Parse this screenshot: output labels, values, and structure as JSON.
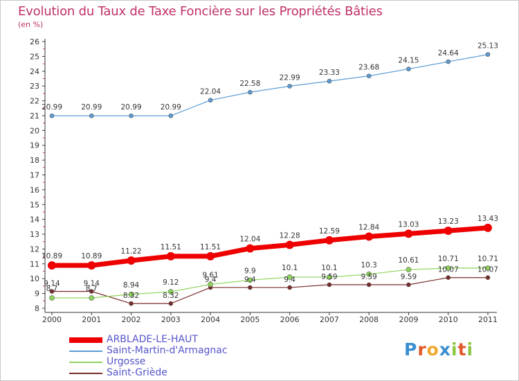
{
  "title": "Evolution du Taux de Taxe Foncière sur les Propriétés Bâties",
  "subtitle": "(en %)",
  "logo": {
    "letters": [
      "P",
      "r",
      "o",
      "x",
      "i",
      "t",
      "i"
    ],
    "colors": [
      "#3a8ed0",
      "#e0592a",
      "#f0a830",
      "#3a8ed0",
      "#8cc63f",
      "#e0592a",
      "#8cc63f"
    ]
  },
  "chart_data": {
    "type": "line",
    "x": [
      "2000",
      "2001",
      "2002",
      "2003",
      "2004",
      "2005",
      "2006",
      "2007",
      "2008",
      "2009",
      "2010",
      "2011"
    ],
    "ylim": [
      8,
      26
    ],
    "yticks": [
      "8",
      "9",
      "10",
      "11",
      "12",
      "13",
      "14",
      "15",
      "16",
      "17",
      "18",
      "19",
      "20",
      "21",
      "22",
      "23",
      "24",
      "25",
      "26"
    ],
    "grid": false,
    "legend_position": "bottom-left",
    "series": [
      {
        "name": "ARBLADE-LE-HAUT",
        "color": "#ee0000",
        "values": [
          10.89,
          10.89,
          11.22,
          11.51,
          11.51,
          12.04,
          12.28,
          12.59,
          12.84,
          13.03,
          13.23,
          13.43
        ],
        "labels": [
          "10.89",
          "10.89",
          "11.22",
          "11.51",
          "11.51",
          "12.04",
          "12.28",
          "12.59",
          "12.84",
          "13.03",
          "13.23",
          "13.43"
        ]
      },
      {
        "name": "Saint-Martin-d'Armagnac",
        "color": "#5b9bd5",
        "values": [
          20.99,
          20.99,
          20.99,
          20.99,
          22.04,
          22.58,
          22.99,
          23.33,
          23.68,
          24.15,
          24.64,
          25.13
        ],
        "labels": [
          "20.99",
          "20.99",
          "20.99",
          "20.99",
          "22.04",
          "22.58",
          "22.99",
          "23.33",
          "23.68",
          "24.15",
          "24.64",
          "25.13"
        ]
      },
      {
        "name": "Urgosse",
        "color": "#8ed45a",
        "values": [
          8.7,
          8.7,
          8.94,
          9.12,
          9.61,
          9.9,
          10.1,
          10.1,
          10.3,
          10.61,
          10.71,
          10.71
        ],
        "labels": [
          "8.7",
          "8.7",
          "8.94",
          "9.12",
          "9.61",
          "9.9",
          "10.1",
          "10.1",
          "10.3",
          "10.61",
          "10.71",
          "10.71"
        ]
      },
      {
        "name": "Saint-Griède",
        "color": "#7a2b2b",
        "values": [
          9.14,
          9.14,
          8.32,
          8.32,
          9.4,
          9.4,
          9.4,
          9.59,
          9.59,
          9.59,
          10.07,
          10.07
        ],
        "labels": [
          "9.14",
          "9.14",
          "8.32",
          "8.32",
          "9.4",
          "9.4",
          "9.4",
          "9.59",
          "9.59",
          "9.59",
          "10.07",
          "10.07"
        ]
      }
    ]
  }
}
